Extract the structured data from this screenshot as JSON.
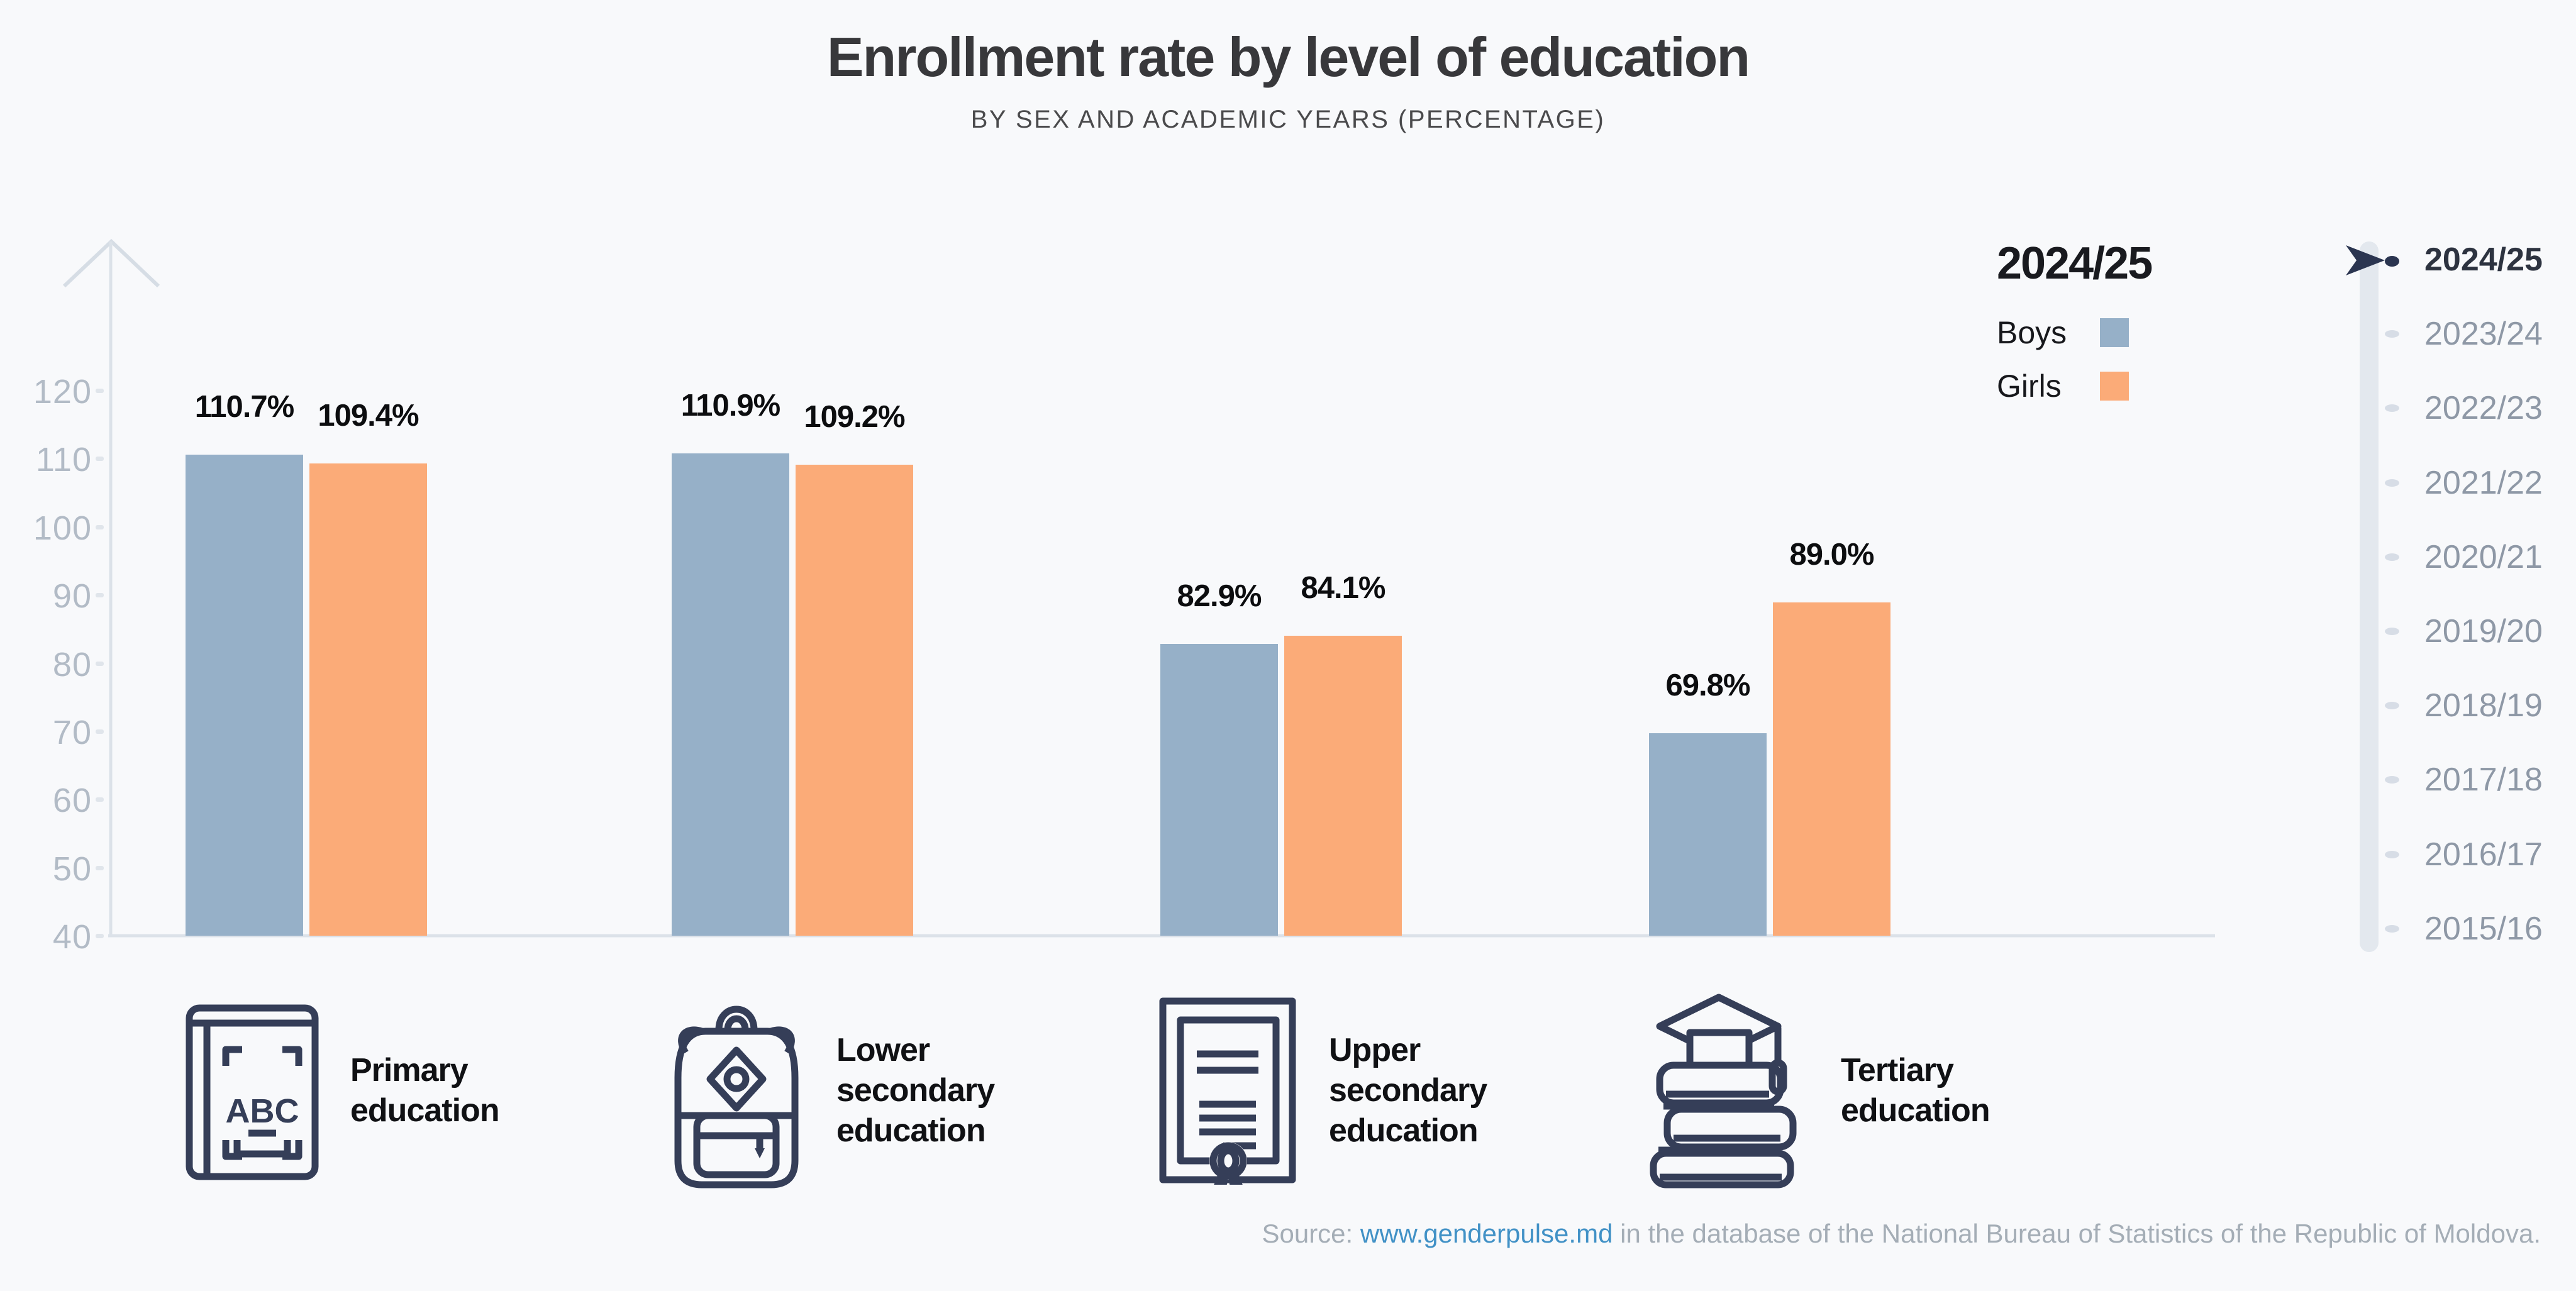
{
  "header": {
    "title": "Enrollment rate by level of education",
    "subtitle": "BY SEX AND ACADEMIC YEARS (PERCENTAGE)"
  },
  "legend": {
    "year": "2024/25",
    "series": [
      {
        "name": "Boys",
        "color": "#96b0c8"
      },
      {
        "name": "Girls",
        "color": "#fbab78"
      }
    ]
  },
  "chart_data": {
    "type": "bar",
    "title": "Enrollment rate by level of education",
    "subtitle": "BY SEX AND ACADEMIC YEARS (PERCENTAGE)",
    "categories": [
      "Primary education",
      "Lower secondary education",
      "Upper secondary education",
      "Tertiary education"
    ],
    "series": [
      {
        "name": "Boys",
        "color": "#96b0c8",
        "values": [
          110.7,
          110.9,
          82.9,
          69.8
        ]
      },
      {
        "name": "Girls",
        "color": "#fbab78",
        "values": [
          109.4,
          109.2,
          84.1,
          89.0
        ]
      }
    ],
    "unit": "%",
    "ylim": [
      40,
      120
    ],
    "yticks": [
      40,
      50,
      60,
      70,
      80,
      90,
      100,
      110,
      120
    ],
    "grid": false,
    "legend_position": "top-right",
    "selected_year": "2024/25"
  },
  "timeline": {
    "years": [
      "2024/25",
      "2023/24",
      "2022/23",
      "2021/22",
      "2020/21",
      "2019/20",
      "2018/19",
      "2017/18",
      "2016/17",
      "2015/16"
    ],
    "selected": "2024/25"
  },
  "category_icons": [
    "abc-book-icon",
    "backpack-icon",
    "diploma-icon",
    "books-graduation-cap-icon"
  ],
  "footer": {
    "source_label": "Source: ",
    "link_text": "www.genderpulse.md",
    "rest": " in the database of the National Bureau of Statistics of the Republic of Moldova."
  },
  "colors": {
    "background": "#f8f9fb",
    "boys": "#96b0c8",
    "girls": "#fbab78",
    "axis": "#d9e0e8",
    "tick_label": "#b2bbc6",
    "icon": "#353e58",
    "year_selected": "#2d3340",
    "year_inactive": "#8e98a6",
    "dot_inactive": "#d7dde6",
    "dot_selected": "#2b3550",
    "link": "#4191c6"
  }
}
